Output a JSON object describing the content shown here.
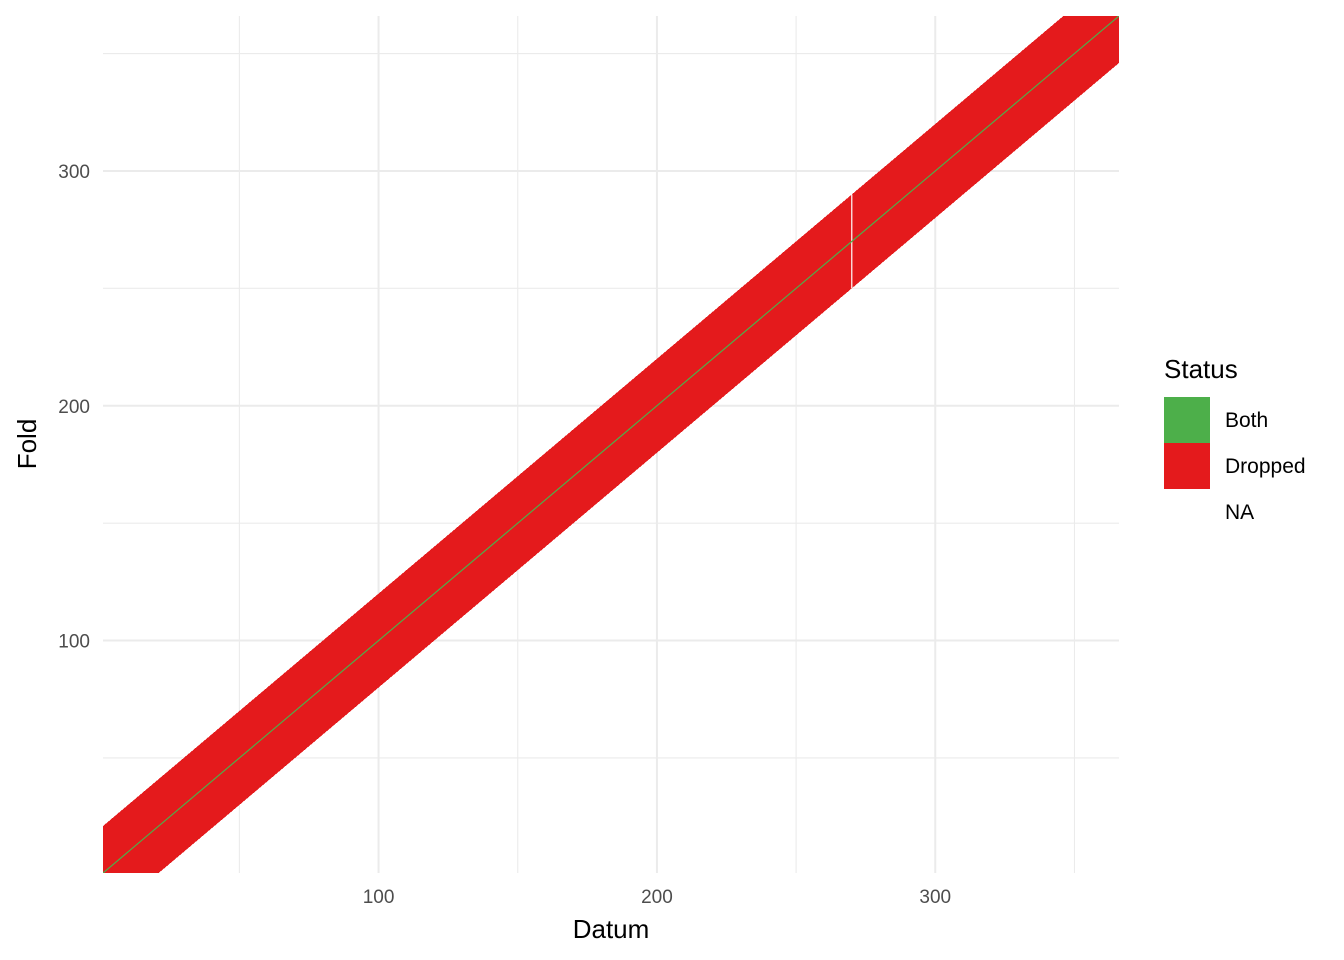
{
  "chart_data": {
    "type": "heatmap",
    "title": "",
    "xlabel": "Datum",
    "ylabel": "Fold",
    "xlim": [
      1,
      366
    ],
    "ylim": [
      1,
      366
    ],
    "x_ticks": [
      100,
      200,
      300
    ],
    "y_ticks": [
      100,
      200,
      300
    ],
    "grid": true,
    "legend": {
      "title": "Status",
      "position": "right",
      "entries": [
        {
          "label": "Both",
          "color": "#4DAF4A"
        },
        {
          "label": "Dropped",
          "color": "#E41A1C"
        },
        {
          "label": "NA",
          "color": "none"
        }
      ]
    },
    "band": {
      "status": "Dropped",
      "color": "#E41A1C",
      "relation": "fold within datum ± 20 days",
      "half_width_days": 20
    },
    "diagonal": {
      "status": "Both",
      "color": "#4DAF4A",
      "relation": "fold = datum"
    },
    "gap_column": {
      "datum": 270,
      "status": "NA"
    }
  }
}
